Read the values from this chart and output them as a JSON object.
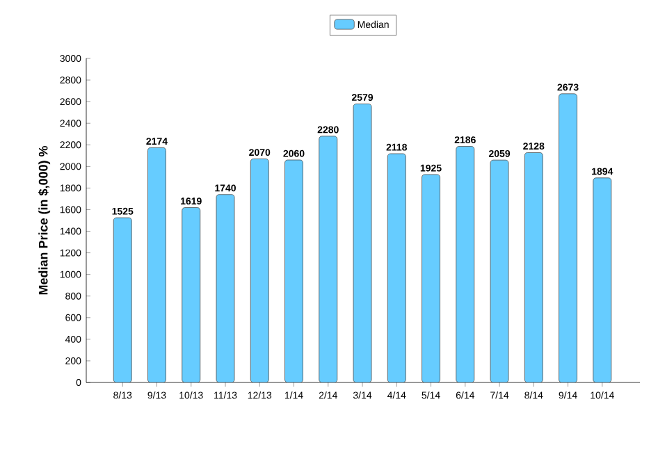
{
  "chart_data": {
    "type": "bar",
    "ylabel": "Median Price (in $,000) %",
    "categories": [
      "8/13",
      "9/13",
      "10/13",
      "11/13",
      "12/13",
      "1/14",
      "2/14",
      "3/14",
      "4/14",
      "5/14",
      "6/14",
      "7/14",
      "8/14",
      "9/14",
      "10/14"
    ],
    "series": [
      {
        "name": "Median",
        "color": "#66ccff",
        "values": [
          1525,
          2174,
          1619,
          1740,
          2070,
          2060,
          2280,
          2579,
          2118,
          1925,
          2186,
          2059,
          2128,
          2673,
          1894
        ]
      }
    ],
    "ylim": [
      0,
      3000
    ],
    "yticks": [
      0,
      200,
      400,
      600,
      800,
      1000,
      1200,
      1400,
      1600,
      1800,
      2000,
      2200,
      2400,
      2600,
      2800,
      3000
    ],
    "data_labels": true,
    "legend": "top",
    "grid": false
  }
}
